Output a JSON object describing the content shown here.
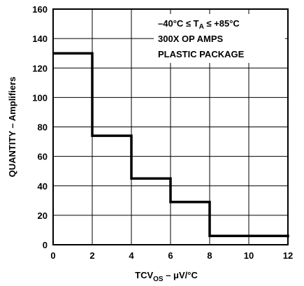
{
  "chart_data": {
    "type": "line",
    "subtype": "step",
    "x": [
      0,
      2,
      4,
      6,
      8,
      12
    ],
    "y": [
      130,
      74,
      45,
      29,
      6,
      5
    ],
    "xlim": [
      0,
      12
    ],
    "ylim": [
      0,
      160
    ],
    "x_ticks": [
      "0",
      "2",
      "4",
      "6",
      "8",
      "10",
      "12"
    ],
    "y_ticks": [
      "0",
      "20",
      "40",
      "60",
      "80",
      "100",
      "120",
      "140",
      "160"
    ],
    "xlabel": {
      "main": "TCV",
      "sub": "OS",
      "rest": " – μV/°C"
    },
    "ylabel": "QUANTITY – Amplifiers",
    "grid": true,
    "annotation": {
      "line1": {
        "pre": "–40°C ≤ T",
        "sub": "A",
        "post": " ≤ +85°C"
      },
      "line2": "300X OP AMPS",
      "line3": "PLASTIC PACKAGE"
    }
  }
}
